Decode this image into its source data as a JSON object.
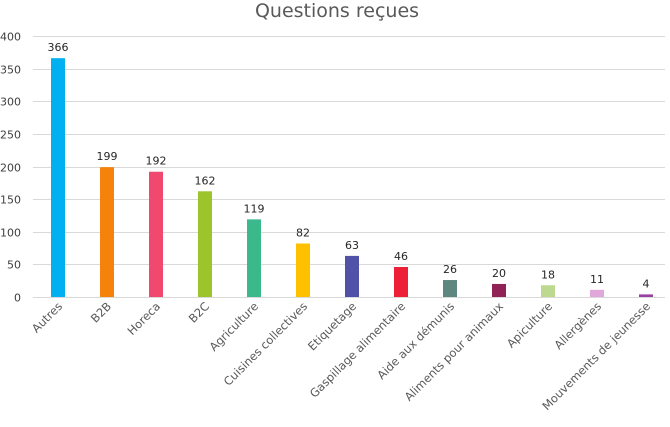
{
  "chart_data": {
    "type": "bar",
    "title": "Questions reçues",
    "xlabel": "",
    "ylabel": "",
    "ylim": [
      0,
      400
    ],
    "yticks": [
      0,
      50,
      100,
      150,
      200,
      250,
      300,
      350,
      400
    ],
    "grid": true,
    "legend": "none",
    "categories": [
      "Autres",
      "B2B",
      "Horeca",
      "B2C",
      "Agriculture",
      "Cuisines collectives",
      "Etiquetage",
      "Gaspillage alimentaire",
      "Aide aux démunis",
      "Aliments pour animaux",
      "Apiculture",
      "Allergènes",
      "Mouvements de jeunesse"
    ],
    "values": [
      366,
      199,
      192,
      162,
      119,
      82,
      63,
      46,
      26,
      20,
      18,
      11,
      4
    ],
    "colors": [
      "#00b0f0",
      "#f5820a",
      "#f0486e",
      "#9bc52a",
      "#3cb98c",
      "#ffc000",
      "#5052a8",
      "#ee2038",
      "#5e8782",
      "#8f2358",
      "#bdd88f",
      "#dfa8d8",
      "#9a3fa3"
    ]
  }
}
